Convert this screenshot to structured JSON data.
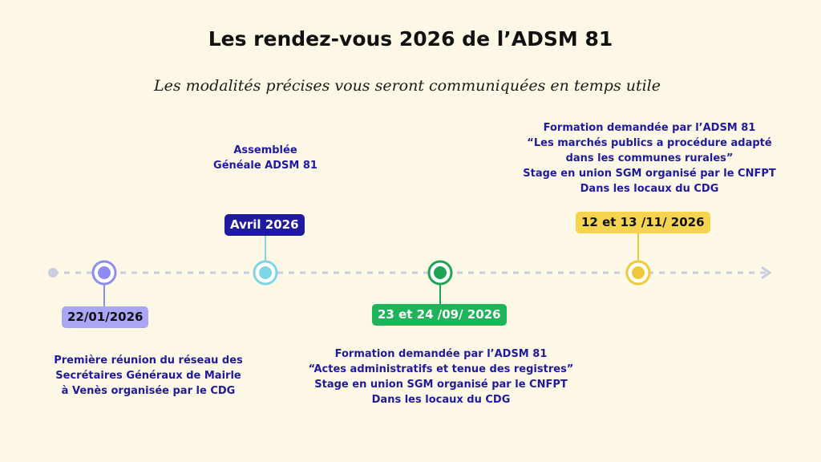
{
  "title": "Les rendez-vous 2026 de l’ADSM 81",
  "subtitle": "Les modalités précises vous seront communiquées en temps utile",
  "events": [
    {
      "date": "22/01/2026",
      "color": "#8f8cf0",
      "badge_bg": "#a9a6f4",
      "badge_text": "#111111",
      "lines": [
        "Première réunion du réseau des",
        "Secrétaires Généraux de  Mairle",
        "à Venès organisée par le CDG"
      ]
    },
    {
      "date": "Avril 2026",
      "color": "#7fd6e8",
      "badge_bg": "#1f1a9e",
      "badge_text": "#ffffff",
      "lines": [
        "Assemblée",
        "Généale ADSM 81"
      ]
    },
    {
      "date": "23 et 24 /09/ 2026",
      "color": "#1fa354",
      "badge_bg": "#1fb35a",
      "badge_text": "#ffffff",
      "lines": [
        "Formation demandée par l’ADSM 81",
        "“Actes administratifs et tenue des registres”",
        "Stage en union SGM organisé par le CNFPT",
        "Dans les locaux du CDG"
      ]
    },
    {
      "date": "12 et 13 /11/ 2026",
      "color": "#f0c93a",
      "badge_bg": "#f6d44d",
      "badge_text": "#111111",
      "lines": [
        "Formation demandée par l’ADSM 81",
        "“Les marchés publics a procédure adapté",
        "dans les communes rurales”",
        "Stage en union SGM organisé par le CNFPT",
        "Dans les locaux du CDG"
      ]
    }
  ]
}
